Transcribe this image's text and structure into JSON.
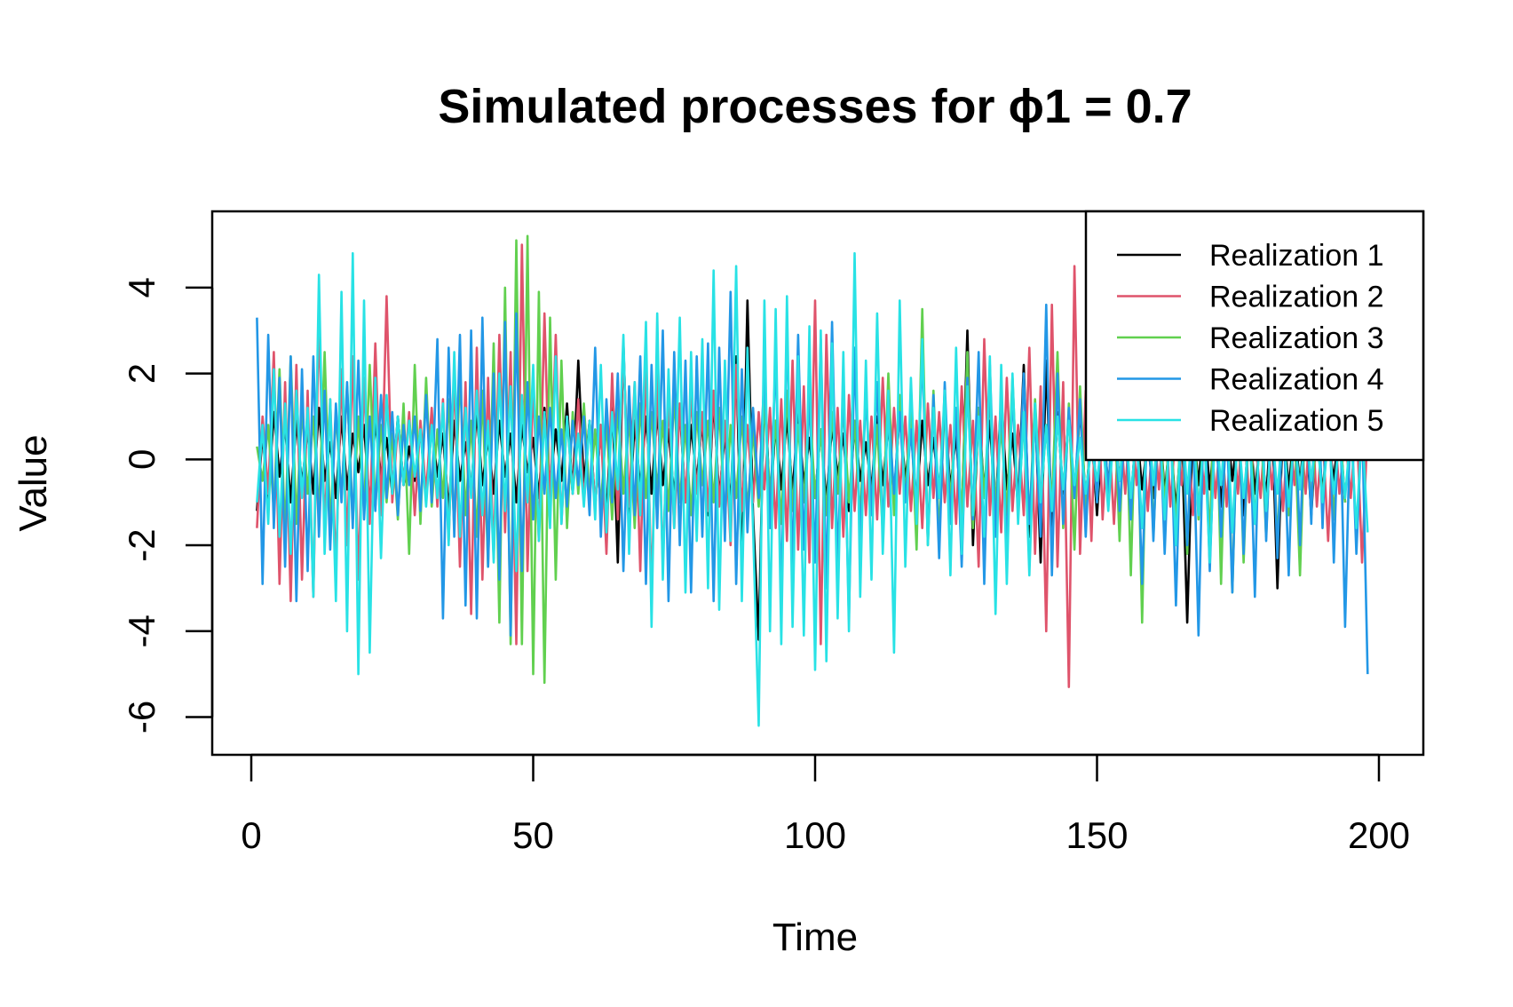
{
  "chart_data": {
    "type": "line",
    "title": "Simulated processes for ϕ1 = 0.7",
    "xlabel": "Time",
    "ylabel": "Value",
    "xlim": [
      1,
      200
    ],
    "ylim": [
      -6.3,
      5.3
    ],
    "x_ticks": [
      0,
      50,
      100,
      150,
      200
    ],
    "y_ticks": [
      -6,
      -4,
      -2,
      0,
      2,
      4
    ],
    "grid": false,
    "legend_position": "top-right",
    "series": [
      {
        "name": "Realization 1",
        "color": "#000000",
        "values": [
          -1.2,
          0.6,
          -0.9,
          1.1,
          -0.4,
          0.8,
          -1.0,
          0.9,
          -0.6,
          0.7,
          -0.8,
          1.2,
          -0.5,
          0.4,
          -0.9,
          1.0,
          -0.7,
          0.6,
          -0.3,
          0.8,
          -1.1,
          0.9,
          -0.4,
          0.5,
          -0.8,
          1.0,
          -0.6,
          0.3,
          -0.5,
          0.7,
          -0.9,
          0.8,
          -0.4,
          0.6,
          -1.2,
          0.9,
          -0.5,
          0.4,
          -0.7,
          1.1,
          -0.6,
          0.5,
          -0.8,
          0.9,
          -0.4,
          0.6,
          -1.0,
          0.8,
          -0.3,
          0.5,
          -0.9,
          1.2,
          -0.6,
          0.7,
          -0.5,
          1.3,
          -0.8,
          2.3,
          -0.6,
          0.9,
          -1.1,
          0.8,
          -1.4,
          1.5,
          -2.4,
          2.7,
          -1.5,
          0.9,
          -0.7,
          1.0,
          -0.8,
          1.1,
          -0.6,
          0.7,
          -0.9,
          1.2,
          -1.0,
          0.8,
          -0.5,
          0.9,
          -1.3,
          1.4,
          -0.9,
          0.6,
          -1.1,
          2.4,
          -2.6,
          3.7,
          -1.3,
          -4.2,
          2.0,
          -1.2,
          0.9,
          -0.7,
          1.0,
          -0.8,
          1.1,
          -0.6,
          0.5,
          -0.9,
          0.7,
          -1.0,
          0.8,
          -0.4,
          0.6,
          -1.2,
          0.9,
          -0.5,
          0.4,
          -0.7,
          1.0,
          -0.6,
          0.8,
          -0.9,
          1.1,
          -0.5,
          0.7,
          -1.0,
          0.9,
          -0.6,
          0.5,
          -0.8,
          1.2,
          -0.7,
          0.6,
          -1.5,
          3.0,
          -2.0,
          1.2,
          -0.8,
          0.9,
          -1.3,
          1.5,
          -0.7,
          0.6,
          -1.1,
          2.2,
          -1.8,
          1.3,
          -2.4,
          2.3,
          -1.6,
          1.1,
          -0.8,
          1.0,
          -0.9,
          1.2,
          -1.0,
          0.7,
          -1.3,
          0.8,
          -0.6,
          0.9,
          -0.5,
          0.6,
          -1.0,
          0.8,
          -0.7,
          0.5,
          -0.9,
          1.1,
          -0.8,
          0.6,
          -1.2,
          0.7,
          -3.8,
          0.9,
          -0.6,
          1.0,
          -0.7,
          0.8,
          -1.1,
          0.9,
          -0.5,
          0.7,
          -1.3,
          1.0,
          -0.8,
          0.6,
          -0.9,
          1.1,
          -3.0,
          1.0,
          -0.7,
          0.8,
          -0.6,
          1.0,
          -1.3,
          0.9,
          -0.8,
          0.6,
          -0.5,
          0.8,
          -1.0
        ]
      },
      {
        "name": "Realization 2",
        "color": "#DF536B",
        "values": [
          -1.6,
          1.0,
          -0.8,
          2.5,
          -2.9,
          1.8,
          -3.3,
          2.2,
          -2.8,
          1.6,
          -3.2,
          3.3,
          -1.6,
          1.4,
          -2.6,
          2.1,
          -2.0,
          2.4,
          -2.8,
          1.9,
          -1.5,
          2.7,
          -1.3,
          3.8,
          -1.0,
          0.8,
          -0.6,
          1.1,
          -1.3,
          0.9,
          -0.8,
          1.2,
          -1.1,
          1.4,
          -1.9,
          2.0,
          -2.5,
          1.8,
          -3.6,
          2.6,
          -2.8,
          1.9,
          -2.3,
          2.9,
          -1.7,
          2.5,
          -4.3,
          5.0,
          -2.6,
          1.8,
          -1.9,
          3.4,
          -1.2,
          2.9,
          -1.5,
          1.0,
          -0.8,
          1.4,
          -1.0,
          0.9,
          -1.1,
          0.8,
          -2.2,
          2.0,
          -1.4,
          2.6,
          -1.1,
          1.8,
          -2.6,
          2.3,
          -3.1,
          2.0,
          -2.4,
          1.5,
          -1.6,
          1.3,
          -1.0,
          1.5,
          -0.8,
          1.1,
          -1.2,
          1.6,
          -1.1,
          0.9,
          -2.0,
          2.2,
          -1.2,
          0.8,
          -1.0,
          1.1,
          -0.7,
          1.2,
          -1.6,
          1.4,
          -1.9,
          2.3,
          -2.1,
          1.7,
          -2.4,
          3.7,
          -4.3,
          2.9,
          -1.6,
          1.2,
          -1.8,
          1.5,
          -1.2,
          0.9,
          -1.3,
          1.0,
          -1.4,
          1.9,
          -1.1,
          1.2,
          -0.8,
          1.0,
          -1.2,
          0.9,
          -1.6,
          1.3,
          -0.9,
          1.1,
          -1.0,
          0.8,
          -1.5,
          1.7,
          -1.1,
          0.9,
          -2.5,
          2.8,
          -1.3,
          1.0,
          -1.7,
          1.9,
          -1.2,
          0.8,
          -1.3,
          2.6,
          -2.2,
          1.7,
          -4.0,
          3.6,
          -2.5,
          1.8,
          -5.3,
          4.5,
          -2.2,
          1.6,
          -1.9,
          2.3,
          -1.4,
          1.0,
          -1.5,
          1.1,
          -0.8,
          1.3,
          -0.6,
          1.0,
          -1.2,
          0.9,
          -0.7,
          1.5,
          -1.1,
          0.8,
          -0.6,
          1.0,
          -1.3,
          1.1,
          -0.8,
          1.2,
          -0.9,
          0.7,
          -1.1,
          1.0,
          -0.8,
          1.3,
          -1.0,
          0.6,
          -0.9,
          1.1,
          -0.7,
          0.8,
          -1.2,
          1.0,
          -0.6,
          0.9,
          -0.8,
          1.4,
          -1.1,
          0.7,
          -1.9,
          1.0,
          -0.8,
          0.6,
          -0.9,
          1.1,
          -2.4,
          0.8
        ]
      },
      {
        "name": "Realization 3",
        "color": "#61D04F",
        "values": [
          0.3,
          -0.5,
          0.8,
          -1.2,
          2.1,
          -1.8,
          2.4,
          -1.5,
          1.2,
          -0.8,
          1.0,
          -1.3,
          2.5,
          -1.6,
          1.1,
          -0.9,
          1.7,
          -1.4,
          1.0,
          -1.2,
          2.2,
          -1.1,
          0.8,
          -1.0,
          0.6,
          -1.4,
          1.3,
          -2.2,
          2.2,
          -1.5,
          1.9,
          -1.1,
          0.7,
          -0.9,
          1.4,
          -1.6,
          2.0,
          -1.3,
          0.9,
          -1.8,
          1.6,
          -2.5,
          2.7,
          -3.8,
          4.0,
          -4.3,
          5.1,
          -4.3,
          5.2,
          -5.0,
          3.9,
          -5.2,
          3.3,
          -2.8,
          2.3,
          -1.6,
          1.1,
          -0.8,
          1.3,
          -0.9,
          0.7,
          -1.1,
          0.9,
          -1.4,
          1.2,
          -0.8,
          1.0,
          -1.6,
          1.3,
          -0.9,
          1.1,
          -0.7,
          0.9,
          -1.2,
          1.5,
          -1.0,
          0.8,
          -1.3,
          1.1,
          -0.6,
          0.9,
          -1.0,
          1.2,
          -1.4,
          0.8,
          -0.9,
          1.0,
          -1.2,
          0.7,
          -1.1,
          1.3,
          -0.8,
          0.9,
          -1.5,
          1.6,
          -1.2,
          0.8,
          -1.0,
          1.4,
          -0.9,
          0.7,
          -1.3,
          1.1,
          -0.8,
          1.2,
          -1.0,
          0.9,
          -1.4,
          1.6,
          -1.1,
          0.8,
          -1.7,
          2.0,
          -1.3,
          1.5,
          -0.9,
          1.2,
          -2.1,
          3.5,
          -2.0,
          1.6,
          -1.8,
          1.3,
          -1.0,
          1.1,
          -1.4,
          2.5,
          -1.6,
          1.2,
          -0.9,
          1.5,
          -1.1,
          0.8,
          -1.3,
          1.9,
          -1.2,
          0.9,
          -1.5,
          1.4,
          -1.0,
          0.8,
          -1.1,
          2.5,
          -1.6,
          1.3,
          -2.1,
          1.7,
          -1.2,
          0.9,
          -1.0,
          1.3,
          -0.8,
          1.5,
          -1.9,
          2.0,
          -2.7,
          2.1,
          -3.8,
          2.4,
          -1.8,
          1.4,
          -1.1,
          0.9,
          -1.6,
          1.2,
          -2.2,
          1.8,
          -1.4,
          1.0,
          -1.9,
          2.5,
          -2.9,
          1.8,
          -3.1,
          1.6,
          -2.4,
          1.2,
          -1.5,
          1.0,
          -1.8,
          1.4,
          -2.0,
          1.1,
          -1.3,
          0.9,
          -2.7,
          1.5,
          -1.1,
          0.8,
          -1.0,
          1.2,
          -1.4,
          0.9,
          -1.0
        ]
      },
      {
        "name": "Realization 4",
        "color": "#2297E6",
        "values": [
          3.3,
          -2.9,
          2.9,
          -1.6,
          1.9,
          -2.5,
          2.4,
          -3.3,
          2.1,
          -2.6,
          2.4,
          -1.8,
          1.6,
          -2.1,
          1.3,
          -1.0,
          1.8,
          -1.6,
          2.3,
          -1.4,
          1.0,
          -1.2,
          1.5,
          -0.9,
          1.1,
          -1.3,
          0.8,
          -0.6,
          1.0,
          -1.2,
          1.5,
          -1.0,
          2.8,
          -3.7,
          2.6,
          -1.8,
          2.9,
          -3.4,
          3.0,
          -3.7,
          3.3,
          -2.5,
          2.0,
          -2.8,
          3.2,
          -4.1,
          3.4,
          -2.6,
          1.8,
          -1.4,
          1.0,
          -0.8,
          1.2,
          -0.9,
          0.7,
          -1.1,
          0.9,
          -0.6,
          1.0,
          -1.3,
          2.6,
          -1.8,
          1.4,
          -1.0,
          2.0,
          -2.6,
          1.7,
          -1.3,
          2.4,
          -2.9,
          2.2,
          -1.6,
          3.0,
          -3.3,
          2.5,
          -2.0,
          2.3,
          -3.1,
          2.4,
          -1.8,
          2.7,
          -3.3,
          2.6,
          -1.9,
          3.9,
          -2.9,
          2.1,
          -1.7,
          1.2,
          -0.9,
          2.0,
          -1.6,
          2.5,
          -3.2,
          3.1,
          -2.6,
          2.9,
          -2.1,
          1.6,
          -2.4,
          2.8,
          -3.0,
          3.2,
          -2.5,
          1.9,
          -3.7,
          2.6,
          -2.0,
          1.6,
          -1.3,
          1.8,
          -1.6,
          1.2,
          -0.8,
          1.1,
          -1.0,
          0.7,
          -1.2,
          2.5,
          -1.9,
          1.5,
          -2.3,
          1.8,
          -1.5,
          1.2,
          -2.5,
          1.9,
          -1.4,
          2.5,
          -2.9,
          2.2,
          -1.8,
          1.5,
          -2.1,
          1.6,
          -1.3,
          2.0,
          -1.5,
          1.1,
          -1.8,
          3.6,
          -2.7,
          2.0,
          -1.5,
          1.2,
          -0.9,
          1.4,
          -1.8,
          1.2,
          -1.0,
          1.3,
          -0.8,
          1.6,
          -1.2,
          0.9,
          -1.4,
          1.1,
          -2.9,
          1.4,
          -1.9,
          1.6,
          -2.2,
          1.3,
          -3.4,
          1.5,
          -2.0,
          1.1,
          -4.1,
          1.6,
          -2.6,
          1.3,
          -1.8,
          1.0,
          -3.1,
          1.7,
          -2.2,
          1.4,
          -3.2,
          2.4,
          -1.9,
          1.6,
          -2.3,
          1.3,
          -2.7,
          1.5,
          -2.0,
          1.8,
          -1.5,
          2.9,
          -1.6,
          2.1,
          -2.4,
          1.9,
          -3.9,
          1.4,
          -2.2,
          1.0,
          -5.0
        ]
      },
      {
        "name": "Realization 5",
        "color": "#28E2E5",
        "values": [
          -1.0,
          0.8,
          -1.5,
          2.1,
          -1.8,
          1.3,
          -2.2,
          1.6,
          -0.9,
          1.2,
          -3.2,
          4.3,
          -2.2,
          1.4,
          -3.3,
          3.9,
          -4.0,
          4.8,
          -5.0,
          3.7,
          -4.5,
          1.9,
          -2.3,
          1.5,
          -0.8,
          1.0,
          -0.6,
          0.9,
          -0.4,
          0.7,
          -1.1,
          0.8,
          -0.9,
          1.3,
          -2.0,
          2.5,
          -1.8,
          1.2,
          -0.9,
          1.6,
          -1.3,
          0.9,
          -2.4,
          2.0,
          -1.2,
          1.7,
          -2.6,
          1.5,
          -1.0,
          2.2,
          -1.9,
          1.1,
          -1.6,
          2.4,
          -1.5,
          1.0,
          -0.8,
          0.6,
          -1.1,
          0.9,
          -1.4,
          2.2,
          -1.7,
          1.1,
          -0.7,
          2.9,
          -2.2,
          1.8,
          -1.3,
          3.2,
          -3.9,
          3.4,
          -2.8,
          2.1,
          -1.6,
          3.3,
          -3.1,
          2.5,
          -1.9,
          2.8,
          -3.0,
          4.4,
          -3.5,
          2.3,
          -1.9,
          4.5,
          -3.3,
          2.6,
          -1.6,
          -6.2,
          3.7,
          -4.0,
          3.5,
          -4.3,
          3.8,
          -3.9,
          2.4,
          -4.1,
          3.1,
          -4.9,
          3.0,
          -4.7,
          2.7,
          -3.7,
          2.5,
          -4.0,
          4.8,
          -3.2,
          2.3,
          -2.8,
          3.4,
          -2.2,
          1.6,
          -4.5,
          3.7,
          -2.5,
          1.9,
          -1.5,
          2.8,
          -2.0,
          1.2,
          -0.9,
          1.6,
          -2.7,
          2.6,
          -2.2,
          1.7,
          -1.3,
          1.0,
          -1.8,
          2.4,
          -3.6,
          2.2,
          -2.9,
          2.0,
          -1.5,
          1.1,
          -2.7,
          1.3,
          -1.0,
          0.8,
          -1.2,
          1.0,
          -0.7,
          0.9,
          -0.6,
          0.5,
          -0.8,
          0.3,
          -0.5,
          0.6,
          -1.2,
          0.8,
          -0.5,
          1.0,
          -0.9,
          0.7,
          -1.6,
          1.1,
          -0.6,
          0.9,
          -1.4,
          0.8,
          -2.0,
          1.2,
          -0.8,
          1.0,
          -1.3,
          0.7,
          -2.4,
          0.9,
          -0.6,
          1.1,
          -1.7,
          0.8,
          -0.9,
          0.6,
          -1.5,
          1.0,
          -1.2,
          0.7,
          -0.8,
          0.9,
          -1.1,
          0.6,
          -0.7,
          0.8,
          -0.5,
          0.7,
          -1.0,
          0.6,
          -0.8,
          0.5,
          -0.9,
          0.7,
          -1.6,
          0.8,
          -1.7
        ]
      }
    ]
  }
}
